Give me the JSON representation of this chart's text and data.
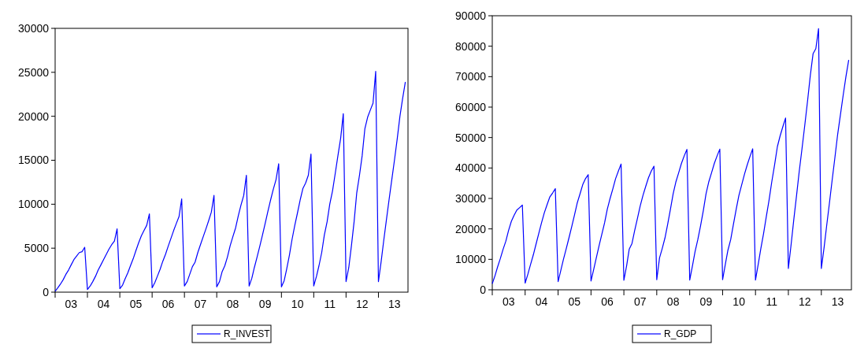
{
  "chart_data": [
    {
      "type": "line",
      "x": [
        "2003-01",
        "2003-02",
        "2003-03",
        "2003-04",
        "2003-05",
        "2003-06",
        "2003-07",
        "2003-08",
        "2003-09",
        "2003-10",
        "2003-11",
        "2003-12",
        "2004-01",
        "2004-02",
        "2004-03",
        "2004-04",
        "2004-05",
        "2004-06",
        "2004-07",
        "2004-08",
        "2004-09",
        "2004-10",
        "2004-11",
        "2004-12",
        "2005-01",
        "2005-02",
        "2005-03",
        "2005-04",
        "2005-05",
        "2005-06",
        "2005-07",
        "2005-08",
        "2005-09",
        "2005-10",
        "2005-11",
        "2005-12",
        "2006-01",
        "2006-02",
        "2006-03",
        "2006-04",
        "2006-05",
        "2006-06",
        "2006-07",
        "2006-08",
        "2006-09",
        "2006-10",
        "2006-11",
        "2006-12",
        "2007-01",
        "2007-02",
        "2007-03",
        "2007-04",
        "2007-05",
        "2007-06",
        "2007-07",
        "2007-08",
        "2007-09",
        "2007-10",
        "2007-11",
        "2007-12",
        "2008-01",
        "2008-02",
        "2008-03",
        "2008-04",
        "2008-05",
        "2008-06",
        "2008-07",
        "2008-08",
        "2008-09",
        "2008-10",
        "2008-11",
        "2008-12",
        "2009-01",
        "2009-02",
        "2009-03",
        "2009-04",
        "2009-05",
        "2009-06",
        "2009-07",
        "2009-08",
        "2009-09",
        "2009-10",
        "2009-11",
        "2009-12",
        "2010-01",
        "2010-02",
        "2010-03",
        "2010-04",
        "2010-05",
        "2010-06",
        "2010-07",
        "2010-08",
        "2010-09",
        "2010-10",
        "2010-11",
        "2010-12",
        "2011-01",
        "2011-02",
        "2011-03",
        "2011-04",
        "2011-05",
        "2011-06",
        "2011-07",
        "2011-08",
        "2011-09",
        "2011-10",
        "2011-11",
        "2011-12",
        "2012-01",
        "2012-02",
        "2012-03",
        "2012-04",
        "2012-05",
        "2012-06",
        "2012-07",
        "2012-08",
        "2012-09",
        "2012-10",
        "2012-11",
        "2012-12",
        "2013-01",
        "2013-02",
        "2013-03",
        "2013-04",
        "2013-05",
        "2013-06",
        "2013-07",
        "2013-08",
        "2013-09",
        "2013-10",
        "2013-11"
      ],
      "xlim": [
        "2003-01",
        "2013-12"
      ],
      "ylim": [
        0,
        30000
      ],
      "yticks": [
        0,
        5000,
        10000,
        15000,
        20000,
        25000,
        30000
      ],
      "xticks": [
        {
          "value": "2003-01",
          "label": null
        },
        {
          "value": "2003-07",
          "label": "03"
        },
        {
          "value": "2004-01",
          "label": null
        },
        {
          "value": "2004-07",
          "label": "04"
        },
        {
          "value": "2005-01",
          "label": null
        },
        {
          "value": "2005-07",
          "label": "05"
        },
        {
          "value": "2006-01",
          "label": null
        },
        {
          "value": "2006-07",
          "label": "06"
        },
        {
          "value": "2007-01",
          "label": null
        },
        {
          "value": "2007-07",
          "label": "07"
        },
        {
          "value": "2008-01",
          "label": null
        },
        {
          "value": "2008-07",
          "label": "08"
        },
        {
          "value": "2009-01",
          "label": null
        },
        {
          "value": "2009-07",
          "label": "09"
        },
        {
          "value": "2010-01",
          "label": null
        },
        {
          "value": "2010-07",
          "label": "10"
        },
        {
          "value": "2011-01",
          "label": null
        },
        {
          "value": "2011-07",
          "label": "11"
        },
        {
          "value": "2012-01",
          "label": null
        },
        {
          "value": "2012-07",
          "label": "12"
        },
        {
          "value": "2013-01",
          "label": null
        },
        {
          "value": "2013-07",
          "label": "13"
        }
      ],
      "legend": "bottom",
      "grid": false,
      "series": [
        {
          "name": "R_INVEST",
          "color": "#0000ff",
          "values": [
            100,
            500,
            900,
            1400,
            2000,
            2500,
            3100,
            3700,
            4100,
            4500,
            4600,
            5100,
            300,
            700,
            1200,
            1800,
            2500,
            3100,
            3700,
            4300,
            4900,
            5400,
            5800,
            7200,
            400,
            800,
            1500,
            2200,
            3000,
            3800,
            4700,
            5600,
            6400,
            7000,
            7600,
            8900,
            500,
            1100,
            1800,
            2600,
            3500,
            4300,
            5200,
            6100,
            7000,
            7800,
            8600,
            10600,
            700,
            1200,
            2000,
            2900,
            3400,
            4500,
            5400,
            6300,
            7200,
            8100,
            9100,
            11000,
            600,
            1200,
            2300,
            3000,
            4000,
            5300,
            6300,
            7300,
            8700,
            9900,
            11000,
            13300,
            700,
            1600,
            2800,
            4000,
            5200,
            6500,
            7800,
            9200,
            10500,
            11700,
            12800,
            14600,
            600,
            1300,
            2600,
            4200,
            6000,
            7600,
            9000,
            10500,
            11800,
            12400,
            13300,
            15700,
            700,
            1800,
            3000,
            4500,
            6500,
            8000,
            10000,
            11500,
            13500,
            15500,
            17500,
            20300,
            1200,
            2800,
            5200,
            8000,
            11300,
            13300,
            15500,
            18600,
            19900,
            20700,
            21500,
            25100,
            1200,
            3500,
            5800,
            8200,
            10500,
            12800,
            15000,
            17400,
            20000,
            22000,
            23900
          ]
        }
      ]
    },
    {
      "type": "line",
      "x": [
        "2003-01",
        "2003-02",
        "2003-03",
        "2003-04",
        "2003-05",
        "2003-06",
        "2003-07",
        "2003-08",
        "2003-09",
        "2003-10",
        "2003-11",
        "2003-12",
        "2004-01",
        "2004-02",
        "2004-03",
        "2004-04",
        "2004-05",
        "2004-06",
        "2004-07",
        "2004-08",
        "2004-09",
        "2004-10",
        "2004-11",
        "2004-12",
        "2005-01",
        "2005-02",
        "2005-03",
        "2005-04",
        "2005-05",
        "2005-06",
        "2005-07",
        "2005-08",
        "2005-09",
        "2005-10",
        "2005-11",
        "2005-12",
        "2006-01",
        "2006-02",
        "2006-03",
        "2006-04",
        "2006-05",
        "2006-06",
        "2006-07",
        "2006-08",
        "2006-09",
        "2006-10",
        "2006-11",
        "2006-12",
        "2007-01",
        "2007-02",
        "2007-03",
        "2007-04",
        "2007-05",
        "2007-06",
        "2007-07",
        "2007-08",
        "2007-09",
        "2007-10",
        "2007-11",
        "2007-12",
        "2008-01",
        "2008-02",
        "2008-03",
        "2008-04",
        "2008-05",
        "2008-06",
        "2008-07",
        "2008-08",
        "2008-09",
        "2008-10",
        "2008-11",
        "2008-12",
        "2009-01",
        "2009-02",
        "2009-03",
        "2009-04",
        "2009-05",
        "2009-06",
        "2009-07",
        "2009-08",
        "2009-09",
        "2009-10",
        "2009-11",
        "2009-12",
        "2010-01",
        "2010-02",
        "2010-03",
        "2010-04",
        "2010-05",
        "2010-06",
        "2010-07",
        "2010-08",
        "2010-09",
        "2010-10",
        "2010-11",
        "2010-12",
        "2011-01",
        "2011-02",
        "2011-03",
        "2011-04",
        "2011-05",
        "2011-06",
        "2011-07",
        "2011-08",
        "2011-09",
        "2011-10",
        "2011-11",
        "2011-12",
        "2012-01",
        "2012-02",
        "2012-03",
        "2012-04",
        "2012-05",
        "2012-06",
        "2012-07",
        "2012-08",
        "2012-09",
        "2012-10",
        "2012-11",
        "2012-12",
        "2013-01",
        "2013-02",
        "2013-03",
        "2013-04",
        "2013-05",
        "2013-06",
        "2013-07",
        "2013-08",
        "2013-09",
        "2013-10",
        "2013-11"
      ],
      "xlim": [
        "2003-01",
        "2013-12"
      ],
      "ylim": [
        0,
        90000
      ],
      "yticks": [
        0,
        10000,
        20000,
        30000,
        40000,
        50000,
        60000,
        70000,
        80000,
        90000
      ],
      "xticks": [
        {
          "value": "2003-01",
          "label": null
        },
        {
          "value": "2003-07",
          "label": "03"
        },
        {
          "value": "2004-01",
          "label": null
        },
        {
          "value": "2004-07",
          "label": "04"
        },
        {
          "value": "2005-01",
          "label": null
        },
        {
          "value": "2005-07",
          "label": "05"
        },
        {
          "value": "2006-01",
          "label": null
        },
        {
          "value": "2006-07",
          "label": "06"
        },
        {
          "value": "2007-01",
          "label": null
        },
        {
          "value": "2007-07",
          "label": "07"
        },
        {
          "value": "2008-01",
          "label": null
        },
        {
          "value": "2008-07",
          "label": "08"
        },
        {
          "value": "2009-01",
          "label": null
        },
        {
          "value": "2009-07",
          "label": "09"
        },
        {
          "value": "2010-01",
          "label": null
        },
        {
          "value": "2010-07",
          "label": "10"
        },
        {
          "value": "2011-01",
          "label": null
        },
        {
          "value": "2011-07",
          "label": "11"
        },
        {
          "value": "2012-01",
          "label": null
        },
        {
          "value": "2012-07",
          "label": "12"
        },
        {
          "value": "2013-01",
          "label": null
        },
        {
          "value": "2013-07",
          "label": "13"
        }
      ],
      "legend": "bottom",
      "grid": false,
      "series": [
        {
          "name": "R_GDP",
          "color": "#0000ff",
          "values": [
            2000,
            4700,
            7500,
            10300,
            13300,
            16000,
            19500,
            22500,
            24500,
            26200,
            27000,
            27800,
            2200,
            5200,
            8300,
            11500,
            15000,
            18600,
            22000,
            25300,
            28000,
            30500,
            31800,
            33200,
            2700,
            6500,
            10000,
            13500,
            17000,
            20700,
            24500,
            28500,
            31500,
            34500,
            36500,
            37800,
            2900,
            6800,
            10500,
            14500,
            18200,
            22000,
            26500,
            30000,
            33200,
            36500,
            39000,
            41300,
            3100,
            8000,
            13300,
            15200,
            19500,
            23500,
            27500,
            31000,
            34000,
            36800,
            39000,
            40600,
            3300,
            10500,
            13500,
            17000,
            21500,
            26500,
            31500,
            35500,
            38500,
            41500,
            44000,
            46100,
            3200,
            8000,
            12500,
            16500,
            21000,
            26000,
            31500,
            35500,
            38500,
            41500,
            44000,
            46200,
            3300,
            8500,
            13000,
            16500,
            21500,
            26500,
            31000,
            34500,
            38000,
            41000,
            43800,
            46300,
            3200,
            8500,
            13500,
            18500,
            24000,
            29500,
            35500,
            41000,
            47000,
            50500,
            53600,
            56400,
            7000,
            15000,
            23000,
            31000,
            39000,
            46500,
            54000,
            62000,
            70500,
            77500,
            79200,
            85800,
            7000,
            14000,
            21000,
            28500,
            36000,
            43500,
            51000,
            57500,
            64000,
            70000,
            75500
          ]
        }
      ]
    }
  ]
}
